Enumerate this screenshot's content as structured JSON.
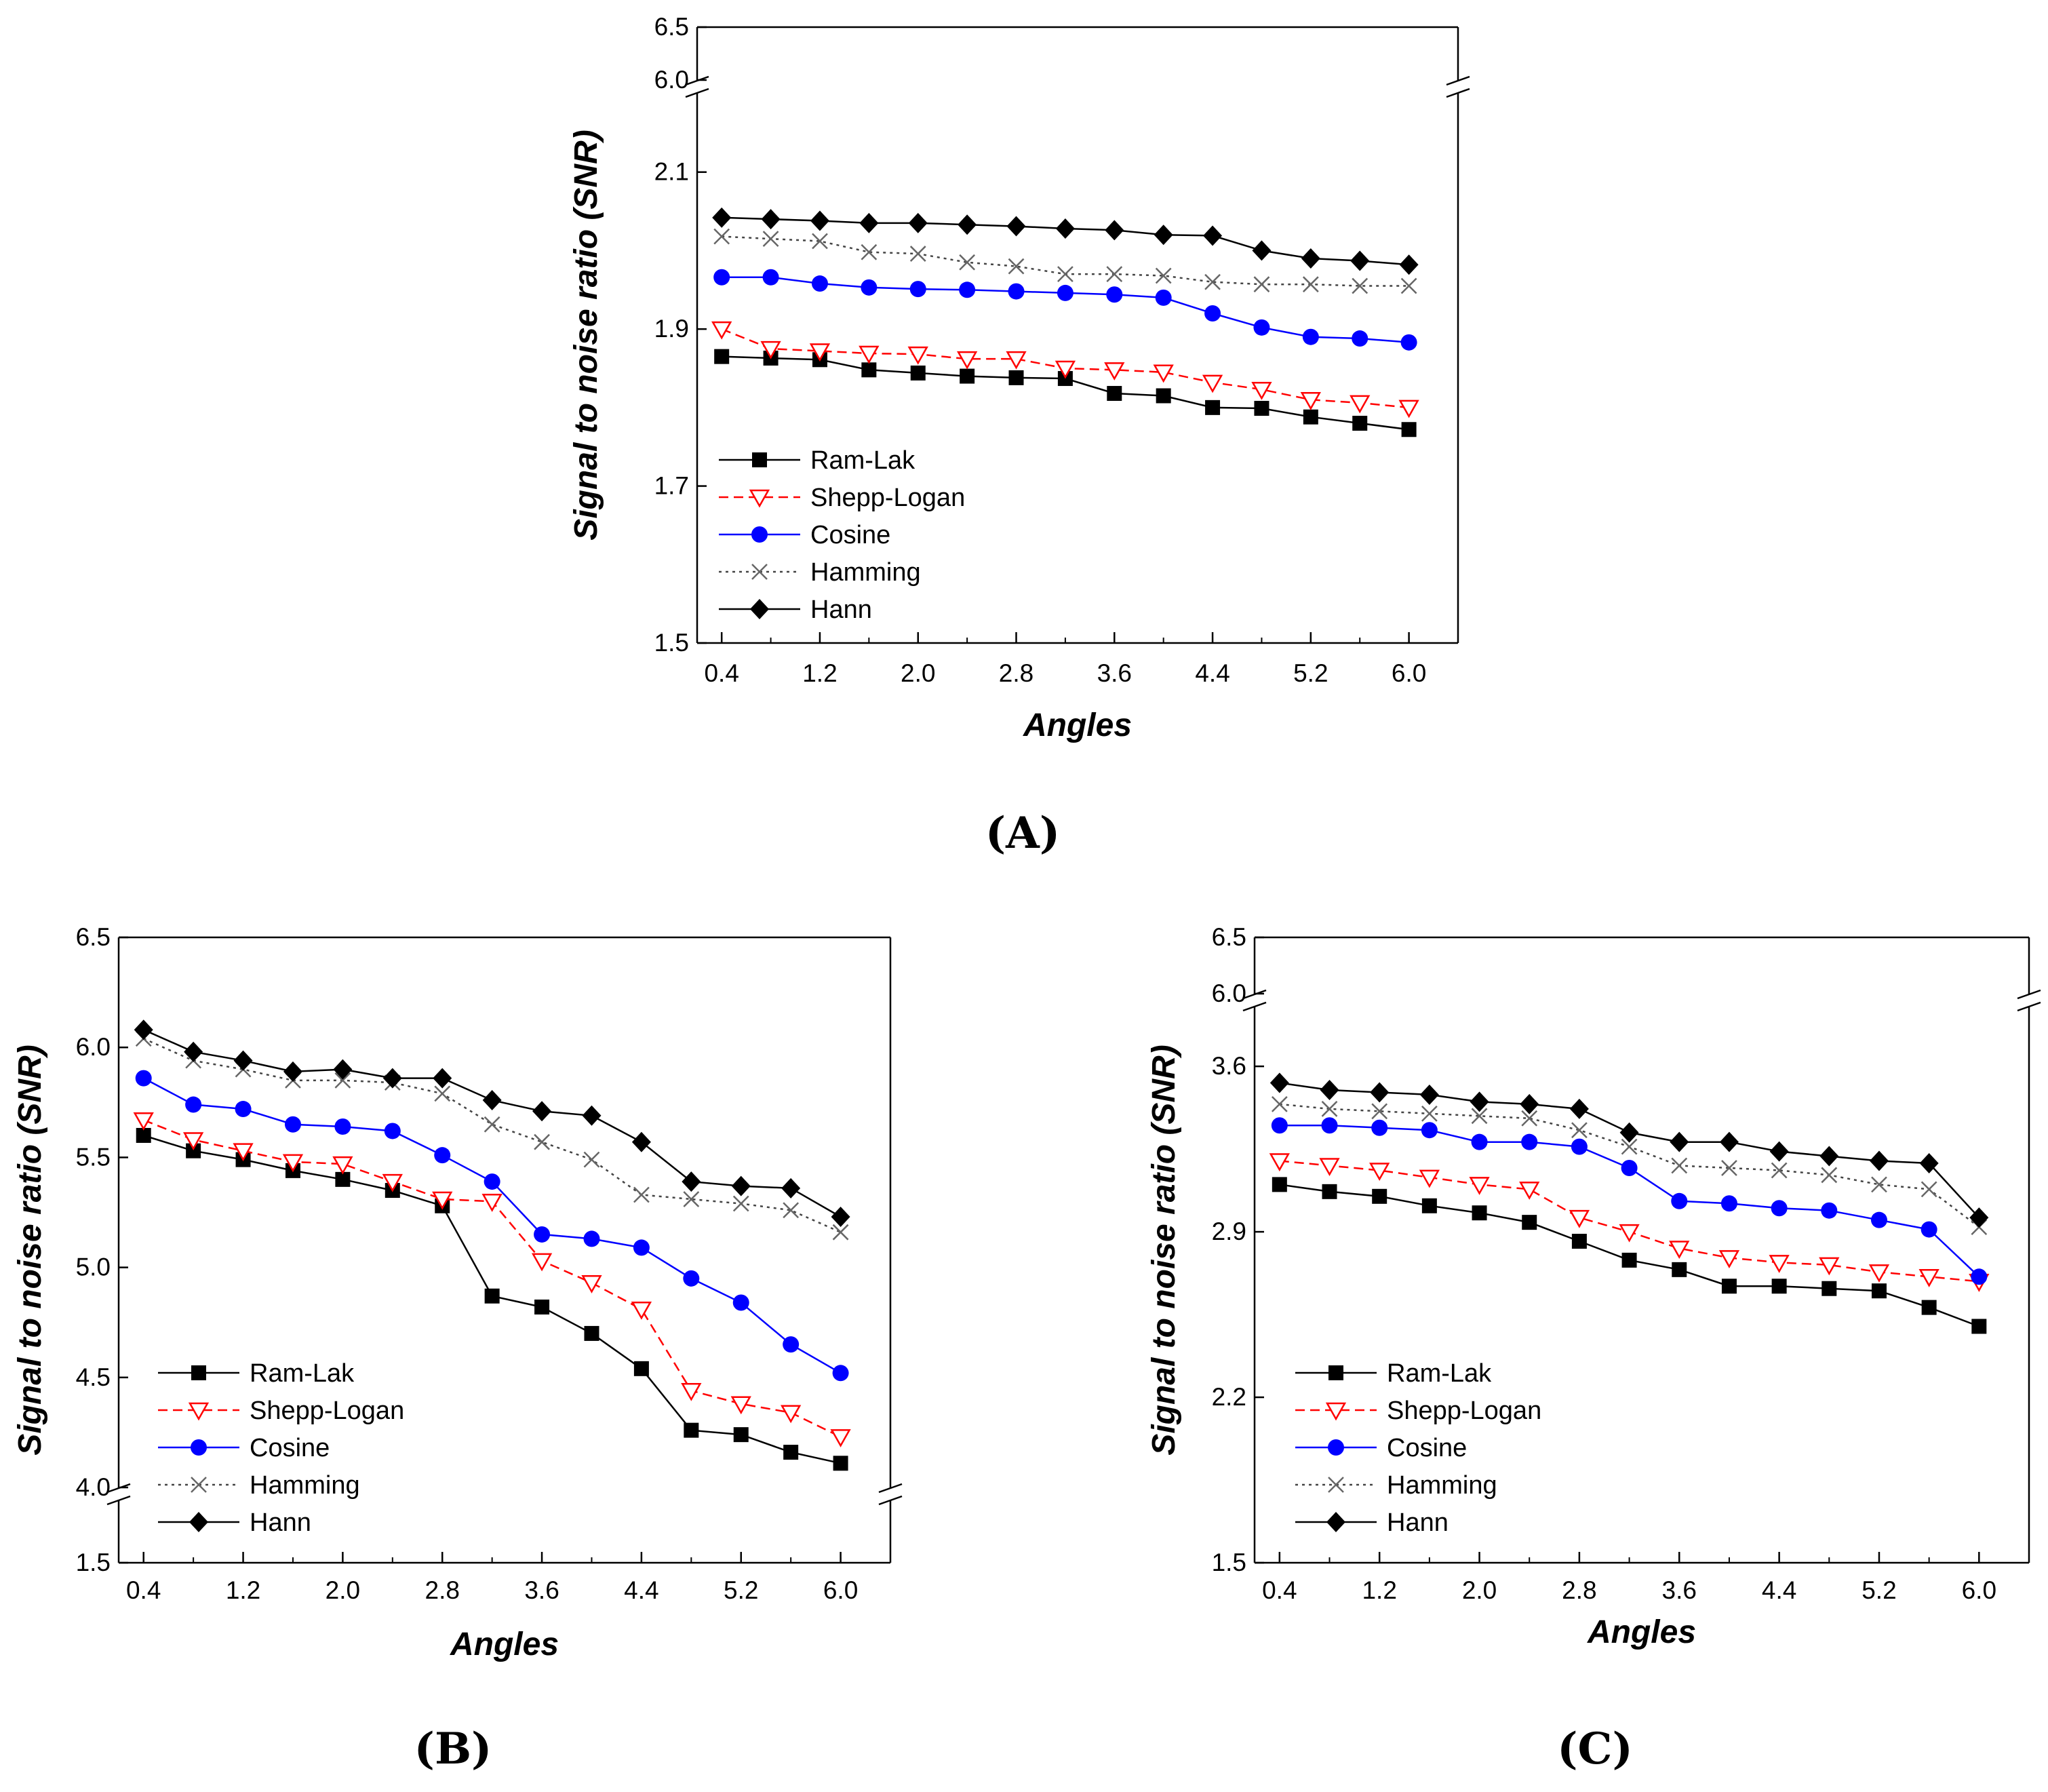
{
  "chart_data": [
    {
      "panel": "(A)",
      "type": "line",
      "xlabel": "Angles",
      "ylabel": "Signal to noise ratio (SNR)",
      "xlim": [
        0.2,
        6.4
      ],
      "xticks": [
        "0.4",
        "1.2",
        "2.0",
        "2.8",
        "3.6",
        "4.4",
        "5.2",
        "6.0"
      ],
      "ylim": [
        1.5,
        6.5
      ],
      "y_break": [
        2.2,
        6.0
      ],
      "yticks": [
        "1.5",
        "1.7",
        "1.9",
        "2.1",
        "6.0",
        "6.5"
      ],
      "legend": "bottom-left",
      "x": [
        0.4,
        0.8,
        1.2,
        1.6,
        2.0,
        2.4,
        2.8,
        3.2,
        3.6,
        4.0,
        4.4,
        4.8,
        5.2,
        5.6,
        6.0
      ],
      "series": [
        {
          "name": "Ram-Lak",
          "values": [
            1.865,
            1.863,
            1.861,
            1.848,
            1.844,
            1.84,
            1.838,
            1.837,
            1.818,
            1.815,
            1.8,
            1.799,
            1.788,
            1.78,
            1.772
          ]
        },
        {
          "name": "Shepp-Logan",
          "values": [
            1.9,
            1.875,
            1.872,
            1.869,
            1.868,
            1.862,
            1.862,
            1.85,
            1.848,
            1.845,
            1.832,
            1.823,
            1.81,
            1.806,
            1.8
          ]
        },
        {
          "name": "Cosine",
          "values": [
            1.966,
            1.966,
            1.958,
            1.953,
            1.951,
            1.95,
            1.948,
            1.946,
            1.944,
            1.94,
            1.92,
            1.902,
            1.89,
            1.888,
            1.883
          ]
        },
        {
          "name": "Hamming",
          "values": [
            2.018,
            2.015,
            2.012,
            1.998,
            1.996,
            1.985,
            1.98,
            1.97,
            1.97,
            1.968,
            1.96,
            1.957,
            1.957,
            1.955,
            1.955
          ]
        },
        {
          "name": "Hann",
          "values": [
            2.042,
            2.04,
            2.038,
            2.035,
            2.035,
            2.033,
            2.031,
            2.028,
            2.026,
            2.02,
            2.019,
            2.0,
            1.99,
            1.987,
            1.982
          ]
        }
      ]
    },
    {
      "panel": "(B)",
      "type": "line",
      "xlabel": "Angles",
      "ylabel": "Signal to noise ratio (SNR)",
      "xlim": [
        0.2,
        6.4
      ],
      "xticks": [
        "0.4",
        "1.2",
        "2.0",
        "2.8",
        "3.6",
        "4.4",
        "5.2",
        "6.0"
      ],
      "ylim": [
        1.5,
        6.5
      ],
      "y_break": [
        2.0,
        4.0
      ],
      "yticks": [
        "1.5",
        "4.0",
        "4.5",
        "5.0",
        "5.5",
        "6.0",
        "6.5"
      ],
      "legend": "bottom-left",
      "x": [
        0.4,
        0.8,
        1.2,
        1.6,
        2.0,
        2.4,
        2.8,
        3.2,
        3.6,
        4.0,
        4.4,
        4.8,
        5.2,
        5.6,
        6.0
      ],
      "series": [
        {
          "name": "Ram-Lak",
          "values": [
            5.6,
            5.53,
            5.49,
            5.44,
            5.4,
            5.35,
            5.28,
            4.87,
            4.82,
            4.7,
            4.54,
            4.26,
            4.24,
            4.16,
            4.11
          ]
        },
        {
          "name": "Shepp-Logan",
          "values": [
            5.67,
            5.58,
            5.53,
            5.48,
            5.47,
            5.39,
            5.31,
            5.3,
            5.03,
            4.93,
            4.81,
            4.44,
            4.38,
            4.34,
            4.23
          ]
        },
        {
          "name": "Cosine",
          "values": [
            5.86,
            5.74,
            5.72,
            5.65,
            5.64,
            5.62,
            5.51,
            5.39,
            5.15,
            5.13,
            5.09,
            4.95,
            4.84,
            4.65,
            4.52
          ]
        },
        {
          "name": "Hamming",
          "values": [
            6.04,
            5.94,
            5.9,
            5.85,
            5.85,
            5.84,
            5.79,
            5.65,
            5.57,
            5.49,
            5.33,
            5.31,
            5.29,
            5.26,
            5.16
          ]
        },
        {
          "name": "Hann",
          "values": [
            6.08,
            5.98,
            5.94,
            5.89,
            5.9,
            5.86,
            5.86,
            5.76,
            5.71,
            5.69,
            5.57,
            5.39,
            5.37,
            5.36,
            5.23
          ]
        }
      ]
    },
    {
      "panel": "(C)",
      "type": "line",
      "xlabel": "Angles",
      "ylabel": "Signal to noise ratio (SNR)",
      "xlim": [
        0.2,
        6.4
      ],
      "xticks": [
        "0.4",
        "1.2",
        "2.0",
        "2.8",
        "3.6",
        "4.4",
        "5.2",
        "6.0"
      ],
      "ylim": [
        1.5,
        6.5
      ],
      "y_break": [
        3.85,
        6.0
      ],
      "yticks": [
        "1.5",
        "2.2",
        "2.9",
        "3.6",
        "6.0",
        "6.5"
      ],
      "legend": "bottom-left",
      "x": [
        0.4,
        0.8,
        1.2,
        1.6,
        2.0,
        2.4,
        2.8,
        3.2,
        3.6,
        4.0,
        4.4,
        4.8,
        5.2,
        5.6,
        6.0
      ],
      "series": [
        {
          "name": "Ram-Lak",
          "values": [
            3.1,
            3.07,
            3.05,
            3.01,
            2.98,
            2.94,
            2.86,
            2.78,
            2.74,
            2.67,
            2.67,
            2.66,
            2.65,
            2.58,
            2.5
          ]
        },
        {
          "name": "Shepp-Logan",
          "values": [
            3.2,
            3.18,
            3.16,
            3.13,
            3.1,
            3.08,
            2.96,
            2.9,
            2.83,
            2.79,
            2.77,
            2.76,
            2.73,
            2.71,
            2.69
          ]
        },
        {
          "name": "Cosine",
          "values": [
            3.35,
            3.35,
            3.34,
            3.33,
            3.28,
            3.28,
            3.26,
            3.17,
            3.03,
            3.02,
            3.0,
            2.99,
            2.95,
            2.91,
            2.71
          ]
        },
        {
          "name": "Hamming",
          "values": [
            3.44,
            3.42,
            3.41,
            3.4,
            3.39,
            3.38,
            3.33,
            3.26,
            3.18,
            3.17,
            3.16,
            3.14,
            3.1,
            3.08,
            2.92
          ]
        },
        {
          "name": "Hann",
          "values": [
            3.53,
            3.5,
            3.49,
            3.48,
            3.45,
            3.44,
            3.42,
            3.32,
            3.28,
            3.28,
            3.24,
            3.22,
            3.2,
            3.19,
            2.96
          ]
        }
      ]
    }
  ],
  "panel_labels": [
    "(A)",
    "(B)",
    "(C)"
  ],
  "series_styles": {
    "Ram-Lak": {
      "color": "#000000",
      "marker": "square",
      "dash": ""
    },
    "Shepp-Logan": {
      "color": "#ff0000",
      "marker": "triangle-down-open",
      "dash": "14,8"
    },
    "Cosine": {
      "color": "#0000ff",
      "marker": "circle",
      "dash": ""
    },
    "Hamming": {
      "color": "#444444",
      "marker": "x",
      "dash": "4,6"
    },
    "Hann": {
      "color": "#000000",
      "marker": "diamond",
      "dash": ""
    }
  }
}
